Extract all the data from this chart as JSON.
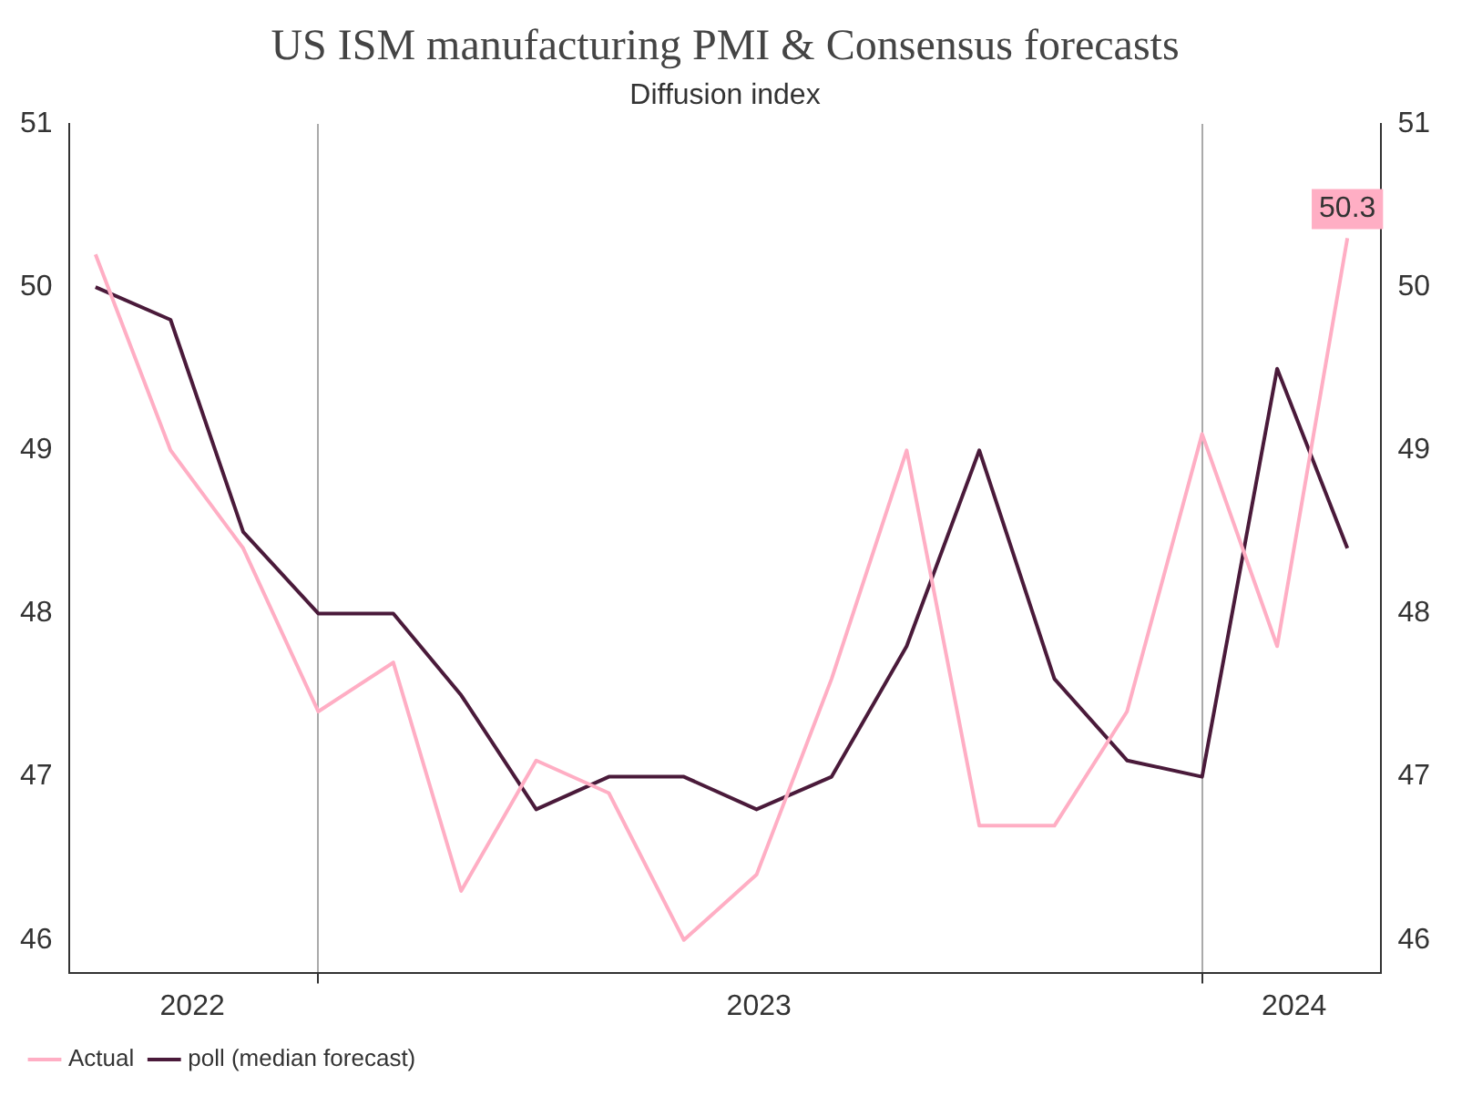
{
  "chart_data": {
    "type": "line",
    "title": "US ISM manufacturing PMI & Consensus forecasts",
    "subtitle": "Diffusion index",
    "x": [
      "2022-10",
      "2022-11",
      "2022-12",
      "2023-01",
      "2023-02",
      "2023-03",
      "2023-04",
      "2023-05",
      "2023-06",
      "2023-07",
      "2023-08",
      "2023-09",
      "2023-10",
      "2023-11",
      "2023-12",
      "2024-01",
      "2024-02",
      "2024-03"
    ],
    "series": [
      {
        "name": "Actual",
        "color": "#ffaec4",
        "values": [
          50.2,
          49.0,
          48.4,
          47.4,
          47.7,
          46.3,
          47.1,
          46.9,
          46.0,
          46.4,
          47.6,
          49.0,
          46.7,
          46.7,
          47.4,
          49.1,
          47.8,
          50.3
        ],
        "value_labels": [
          null,
          null,
          null,
          null,
          null,
          null,
          null,
          null,
          null,
          null,
          null,
          null,
          null,
          null,
          null,
          null,
          null,
          "50.3"
        ]
      },
      {
        "name": "poll (median forecast)",
        "color": "#4a1a3a",
        "values": [
          50.0,
          49.8,
          48.5,
          48.0,
          48.0,
          47.5,
          46.8,
          47.0,
          47.0,
          46.8,
          47.0,
          47.8,
          49.0,
          47.6,
          47.1,
          47.0,
          49.5,
          48.4
        ]
      }
    ],
    "xlim": [
      "2022-09-20",
      "2024-03-15"
    ],
    "xticks": [
      {
        "value": "2022-11-10",
        "label": "2022"
      },
      {
        "value": "2023-01-01",
        "label": null
      },
      {
        "value": "2023-07-02",
        "label": "2023"
      },
      {
        "value": "2024-01-01",
        "label": null
      },
      {
        "value": "2024-02-08",
        "label": "2024"
      }
    ],
    "ylim": [
      45.8,
      51
    ],
    "yticks": [
      46,
      47,
      48,
      49,
      50,
      51
    ],
    "y2lim": [
      45.8,
      51
    ],
    "y2ticks": [
      46,
      47,
      48,
      49,
      50,
      51
    ],
    "grid": "x",
    "legend": "bottom left",
    "marker": "none",
    "line_style": "solid"
  }
}
